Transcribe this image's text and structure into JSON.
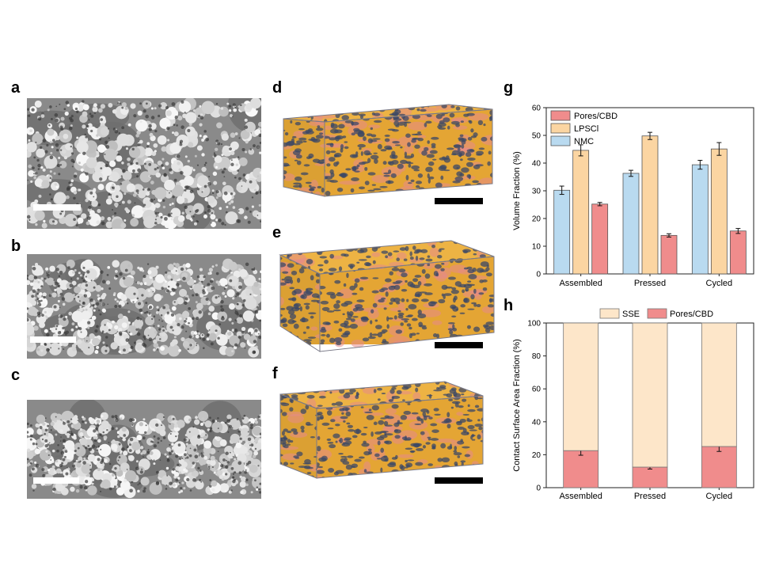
{
  "panels": {
    "a": "a",
    "b": "b",
    "c": "c",
    "d": "d",
    "e": "e",
    "f": "f",
    "g": "g",
    "h": "h"
  },
  "colors": {
    "pores_cbd": "#f08c8c",
    "lpscl": "#fbd5a2",
    "nmc": "#b9daf0",
    "sse": "#fde6c9",
    "render_orange": "#e8a93a",
    "render_dark": "#3c4866",
    "render_pink": "#e58a8a"
  },
  "chart_data": [
    {
      "panel": "g",
      "type": "bar",
      "categories": [
        "Assembled",
        "Pressed",
        "Cycled"
      ],
      "ylabel": "Volume Fraction (%)",
      "xlabel": "",
      "ylim": [
        0,
        60
      ],
      "yticks": [
        0,
        10,
        20,
        30,
        40,
        50,
        60
      ],
      "legend_position": "top-left",
      "legend_order": [
        "Pores/CBD",
        "LPSCl",
        "NMC"
      ],
      "series": [
        {
          "name": "NMC",
          "values": [
            30.2,
            36.3,
            39.4
          ],
          "errors": [
            1.5,
            1.1,
            1.6
          ],
          "color": "#b9daf0"
        },
        {
          "name": "LPSCl",
          "values": [
            44.6,
            49.8,
            45.1
          ],
          "errors": [
            2.0,
            1.3,
            2.3
          ],
          "color": "#fbd5a2"
        },
        {
          "name": "Pores/CBD",
          "values": [
            25.2,
            13.9,
            15.5
          ],
          "errors": [
            0.6,
            0.6,
            0.9
          ],
          "color": "#f08c8c"
        }
      ]
    },
    {
      "panel": "h",
      "type": "bar",
      "stacked": true,
      "categories": [
        "Assembled",
        "Pressed",
        "Cycled"
      ],
      "ylabel": "Contact Surface Area Fraction (%)",
      "xlabel": "",
      "ylim": [
        0,
        100
      ],
      "yticks": [
        0,
        20,
        40,
        60,
        80,
        100
      ],
      "legend_position": "top",
      "legend_order": [
        "SSE",
        "Pores/CBD"
      ],
      "series": [
        {
          "name": "Pores/CBD",
          "values": [
            22.5,
            12.5,
            25.0
          ],
          "errors": [
            2.8,
            1.2,
            3.0
          ],
          "color": "#f08c8c"
        },
        {
          "name": "SSE",
          "values": [
            77.5,
            87.5,
            75.0
          ],
          "color": "#fde6c9"
        }
      ]
    }
  ]
}
